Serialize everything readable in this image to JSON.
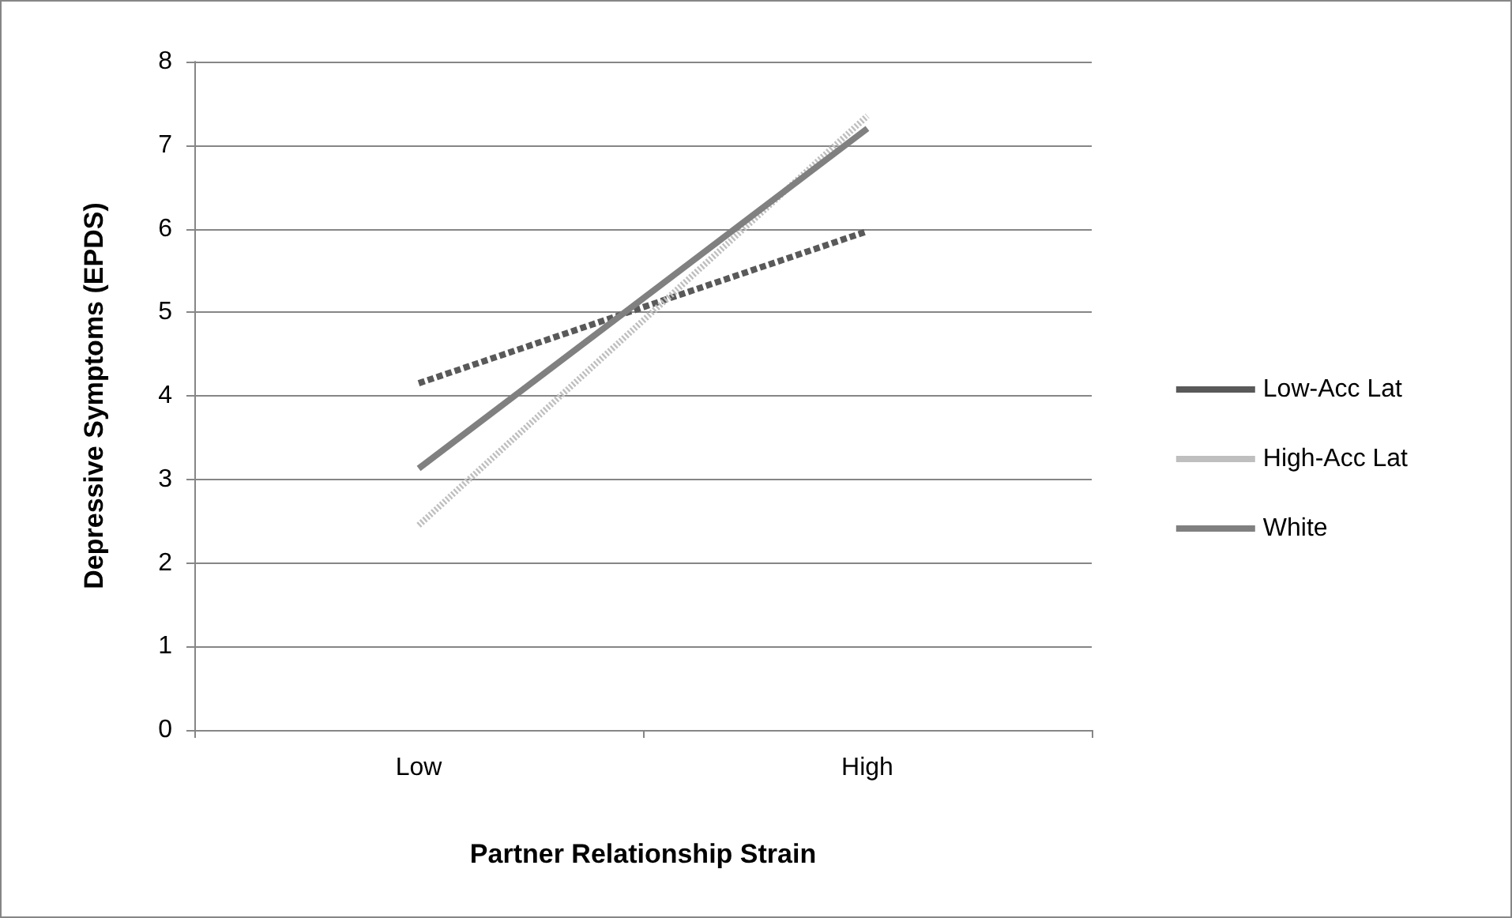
{
  "chart_data": {
    "type": "line",
    "xlabel": "Partner Relationship Strain",
    "ylabel": "Depressive Symptoms (EPDS)",
    "categories": [
      "Low",
      "High"
    ],
    "series": [
      {
        "name": "Low-Acc Lat",
        "color": "#595959",
        "line_style": "dashed",
        "values": [
          4.15,
          5.97
        ]
      },
      {
        "name": "High-Acc Lat",
        "color": "#bfbfbf",
        "line_style": "dotted",
        "values": [
          2.45,
          7.35
        ]
      },
      {
        "name": "White",
        "color": "#808080",
        "line_style": "solid",
        "values": [
          3.13,
          7.2
        ]
      }
    ],
    "ylim": [
      0,
      8
    ],
    "yticks": [
      0,
      1,
      2,
      3,
      4,
      5,
      6,
      7,
      8
    ],
    "grid": "y",
    "legend": "right",
    "marker": "none"
  }
}
